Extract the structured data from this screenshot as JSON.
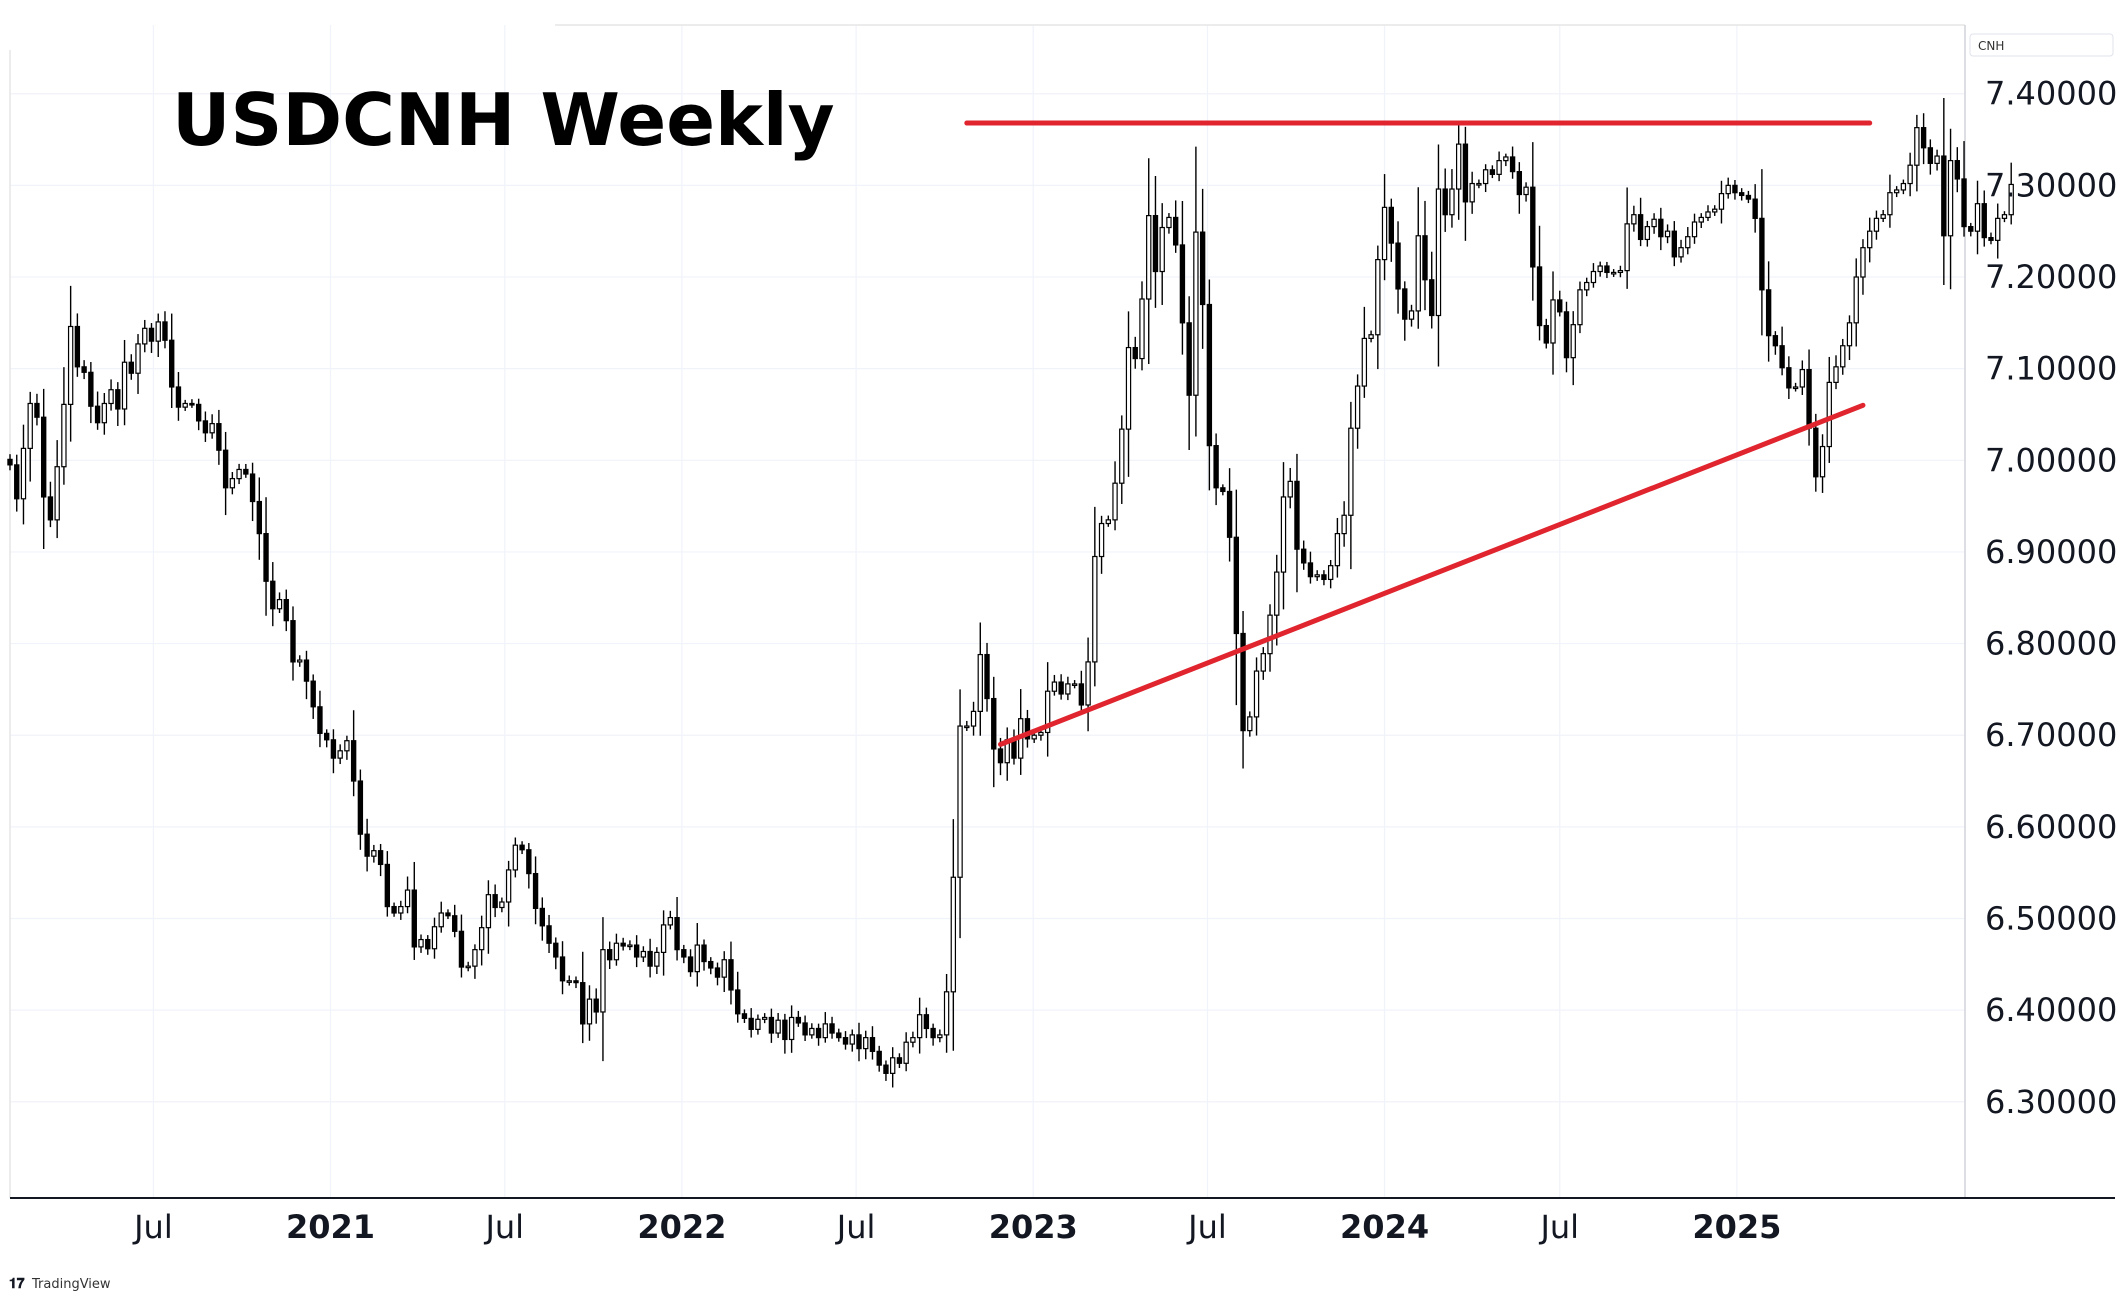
{
  "chart_data": {
    "type": "candlestick",
    "title": "USDCNH Weekly",
    "symbol": "CNH",
    "brand": "TradingView",
    "x_tick_labels": [
      "Jul",
      "2021",
      "Jul",
      "2022",
      "Jul",
      "2023",
      "Jul",
      "2024",
      "Jul",
      "2025"
    ],
    "x_tick_dates": [
      "2020-07-01",
      "2021-01-01",
      "2021-07-01",
      "2022-01-01",
      "2022-07-01",
      "2023-01-01",
      "2023-07-01",
      "2024-01-01",
      "2024-07-01",
      "2025-01-01"
    ],
    "y_tick_labels": [
      "7.40000",
      "7.30000",
      "7.20000",
      "7.10000",
      "7.00000",
      "6.90000",
      "6.80000",
      "6.70000",
      "6.60000",
      "6.50000",
      "6.40000",
      "6.30000"
    ],
    "y_ticks": [
      7.4,
      7.3,
      7.2,
      7.1,
      7.0,
      6.9,
      6.8,
      6.7,
      6.6,
      6.5,
      6.4,
      6.3
    ],
    "ylim": [
      6.195,
      7.475
    ],
    "xlim": [
      "2020-02-03",
      "2025-08-26"
    ],
    "grid": true,
    "colors": {
      "up_body": "#ffffff",
      "down_body": "#000000",
      "wick": "#000000",
      "trendline": "#e0252f"
    },
    "trendlines": [
      {
        "name": "resistance",
        "start": [
          "2022-10-24",
          7.368
        ],
        "end": [
          "2025-05-19",
          7.368
        ]
      },
      {
        "name": "support",
        "start": [
          "2022-11-28",
          6.69
        ],
        "end": [
          "2025-05-12",
          7.06
        ]
      }
    ],
    "closes": [
      6.995,
      6.958,
      7.013,
      7.062,
      7.047,
      6.96,
      6.935,
      6.993,
      7.061,
      7.146,
      7.102,
      7.096,
      7.059,
      7.041,
      7.062,
      7.077,
      7.056,
      7.107,
      7.095,
      7.127,
      7.144,
      7.13,
      7.151,
      7.131,
      7.08,
      7.058,
      7.062,
      7.061,
      7.043,
      7.03,
      7.04,
      7.011,
      6.97,
      6.98,
      6.99,
      6.985,
      6.955,
      6.92,
      6.868,
      6.838,
      6.848,
      6.825,
      6.78,
      6.782,
      6.759,
      6.731,
      6.702,
      6.695,
      6.675,
      6.683,
      6.694,
      6.65,
      6.592,
      6.568,
      6.574,
      6.559,
      6.513,
      6.506,
      6.513,
      6.531,
      6.469,
      6.477,
      6.467,
      6.491,
      6.506,
      6.503,
      6.486,
      6.447,
      6.448,
      6.466,
      6.49,
      6.526,
      6.512,
      6.518,
      6.553,
      6.58,
      6.575,
      6.549,
      6.511,
      6.492,
      6.473,
      6.458,
      6.432,
      6.432,
      6.43,
      6.385,
      6.412,
      6.398,
      6.466,
      6.455,
      6.473,
      6.47,
      6.471,
      6.458,
      6.464,
      6.448,
      6.463,
      6.493,
      6.501,
      6.466,
      6.458,
      6.442,
      6.471,
      6.453,
      6.446,
      6.436,
      6.455,
      6.422,
      6.396,
      6.391,
      6.379,
      6.39,
      6.392,
      6.375,
      6.389,
      6.368,
      6.392,
      6.386,
      6.373,
      6.38,
      6.37,
      6.385,
      6.375,
      6.37,
      6.363,
      6.373,
      6.358,
      6.37,
      6.355,
      6.34,
      6.331,
      6.348,
      6.342,
      6.365,
      6.37,
      6.395,
      6.38,
      6.37,
      6.373,
      6.42,
      6.545,
      6.71,
      6.71,
      6.726,
      6.788,
      6.74,
      6.685,
      6.67,
      6.695,
      6.675,
      6.718,
      6.696,
      6.7,
      6.703,
      6.748,
      6.758,
      6.745,
      6.756,
      6.756,
      6.733,
      6.78,
      6.895,
      6.931,
      6.935,
      6.975,
      7.034,
      7.123,
      7.111,
      7.176,
      7.267,
      7.206,
      7.254,
      7.265,
      7.235,
      7.15,
      7.071,
      7.249,
      7.17,
      7.016,
      6.97,
      6.966,
      6.916,
      6.811,
      6.705,
      6.72,
      6.77,
      6.789,
      6.831,
      6.878,
      6.96,
      6.977,
      6.903,
      6.888,
      6.873,
      6.875,
      6.87,
      6.885,
      6.92,
      6.94,
      7.035,
      7.081,
      7.133,
      7.137,
      7.219,
      7.276,
      7.237,
      7.187,
      7.154,
      7.163,
      7.245,
      7.197,
      7.158,
      7.296,
      7.268,
      7.296,
      7.345,
      7.282,
      7.302,
      7.302,
      7.317,
      7.312,
      7.327,
      7.331,
      7.315,
      7.29,
      7.298,
      7.211,
      7.147,
      7.128,
      7.175,
      7.162,
      7.112,
      7.148,
      7.186,
      7.194,
      7.206,
      7.212,
      7.205,
      7.205,
      7.207,
      7.258,
      7.268,
      7.241,
      7.255,
      7.263,
      7.244,
      7.25,
      7.222,
      7.232,
      7.244,
      7.26,
      7.265,
      7.271,
      7.274,
      7.291,
      7.3,
      7.292,
      7.289,
      7.285,
      7.264,
      7.186,
      7.136,
      7.125,
      7.101,
      7.079,
      7.08,
      7.099,
      7.035,
      6.982,
      7.015,
      7.085,
      7.102,
      7.125,
      7.15,
      7.2,
      7.232,
      7.25,
      7.264,
      7.268,
      7.292,
      7.295,
      7.302,
      7.322,
      7.363,
      7.341,
      7.324,
      7.332,
      7.245,
      7.327,
      7.307,
      7.255,
      7.25,
      7.28,
      7.243,
      7.24,
      7.264,
      7.268,
      7.301
    ]
  }
}
